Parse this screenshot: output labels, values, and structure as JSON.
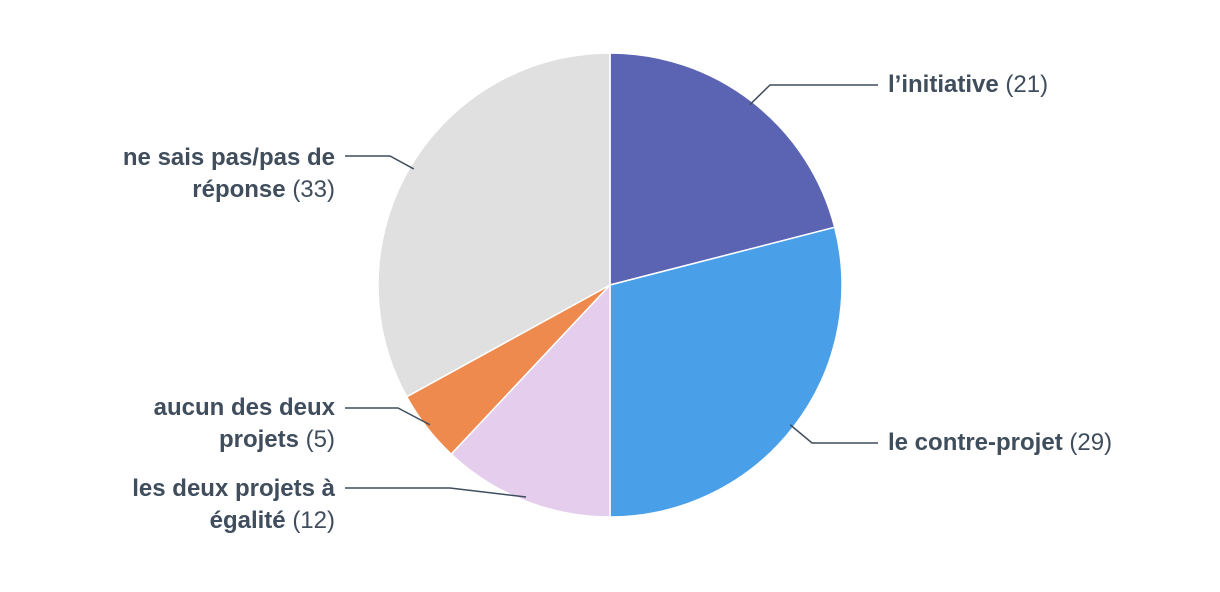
{
  "chart_data": {
    "type": "pie",
    "categories": [
      "l’initiative",
      "le contre-projet",
      "les deux projets à égalité",
      "aucun des deux projets",
      "ne sais pas/pas de réponse"
    ],
    "values": [
      21,
      29,
      12,
      5,
      33
    ],
    "value_labels": [
      "(21)",
      "(29)",
      "(12)",
      "(5)",
      "(33)"
    ],
    "colors": [
      "#5a64b3",
      "#4aa0e8",
      "#e5cdee",
      "#ee8a4e",
      "#e0e0e0"
    ]
  }
}
